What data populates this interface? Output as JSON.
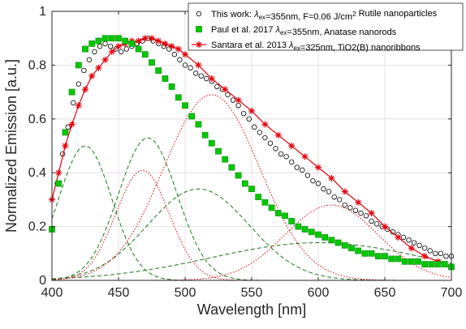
{
  "chart_data": {
    "type": "scatter",
    "xlabel": "Wavelength [nm]",
    "ylabel": "Normalized Emission [a.u.]",
    "xlim": [
      400,
      700
    ],
    "ylim": [
      0,
      1
    ],
    "grid": true,
    "legend_position": "top-right",
    "x_ticks": [
      "400",
      "450",
      "500",
      "550",
      "600",
      "650",
      "700"
    ],
    "y_ticks": [
      "0",
      "0.2",
      "0.4",
      "0.6",
      "0.8",
      "1"
    ],
    "legend": [
      {
        "series": "this_work",
        "parts": [
          {
            "t": "This work: "
          },
          {
            "t": "λ",
            "style": "italic"
          },
          {
            "t": "ex",
            "style": "sub"
          },
          {
            "t": "=355nm, F=0.06 J/cm"
          },
          {
            "t": "2",
            "style": "sup"
          },
          {
            "t": "  Rutile nanoparticles"
          }
        ]
      },
      {
        "series": "paul",
        "parts": [
          {
            "t": "Paul et al. 2017 "
          },
          {
            "t": "λ",
            "style": "italic"
          },
          {
            "t": "ex",
            "style": "sub"
          },
          {
            "t": "=355nm, Anatase nanorods"
          }
        ]
      },
      {
        "series": "santara",
        "parts": [
          {
            "t": "Santara et al. 2013 "
          },
          {
            "t": "λ",
            "style": "italic"
          },
          {
            "t": "ex",
            "style": "sub"
          },
          {
            "t": "=325nm, TiO2(B) nanoribbons"
          }
        ]
      }
    ],
    "series": [
      {
        "id": "this_work",
        "marker": "open-circle",
        "color": "#000000",
        "x": [
          404,
          408,
          412,
          416,
          420,
          424,
          428,
          432,
          436,
          440,
          444,
          448,
          452,
          456,
          460,
          464,
          468,
          472,
          476,
          480,
          484,
          488,
          492,
          496,
          500,
          504,
          508,
          512,
          516,
          520,
          524,
          528,
          532,
          536,
          540,
          544,
          548,
          552,
          556,
          560,
          564,
          568,
          572,
          576,
          580,
          584,
          588,
          592,
          596,
          600,
          604,
          608,
          612,
          616,
          620,
          624,
          628,
          632,
          636,
          640,
          644,
          648,
          652,
          656,
          660,
          664,
          668,
          672,
          676,
          680,
          684,
          688,
          692,
          696,
          700
        ],
        "y": [
          0.36,
          0.47,
          0.57,
          0.66,
          0.73,
          0.78,
          0.82,
          0.85,
          0.87,
          0.88,
          0.87,
          0.86,
          0.85,
          0.86,
          0.87,
          0.88,
          0.89,
          0.9,
          0.89,
          0.88,
          0.87,
          0.86,
          0.84,
          0.82,
          0.8,
          0.79,
          0.77,
          0.76,
          0.75,
          0.74,
          0.72,
          0.71,
          0.69,
          0.67,
          0.65,
          0.62,
          0.6,
          0.57,
          0.55,
          0.53,
          0.51,
          0.49,
          0.47,
          0.46,
          0.44,
          0.42,
          0.41,
          0.39,
          0.37,
          0.36,
          0.34,
          0.33,
          0.31,
          0.3,
          0.28,
          0.27,
          0.26,
          0.25,
          0.24,
          0.22,
          0.21,
          0.2,
          0.19,
          0.18,
          0.17,
          0.16,
          0.15,
          0.14,
          0.13,
          0.12,
          0.11,
          0.1,
          0.1,
          0.09,
          0.09
        ]
      },
      {
        "id": "paul",
        "marker": "filled-square",
        "color": "#00c800",
        "x": [
          400,
          405,
          410,
          415,
          420,
          425,
          430,
          435,
          440,
          445,
          450,
          455,
          460,
          465,
          470,
          475,
          480,
          485,
          490,
          495,
          500,
          505,
          510,
          515,
          520,
          525,
          530,
          535,
          540,
          545,
          550,
          555,
          560,
          565,
          570,
          575,
          580,
          585,
          590,
          595,
          600,
          605,
          610,
          615,
          620,
          625,
          630,
          635,
          640,
          645,
          650,
          655,
          660,
          665,
          670,
          675,
          680,
          685,
          690,
          695,
          700
        ],
        "y": [
          0.19,
          0.36,
          0.55,
          0.7,
          0.8,
          0.86,
          0.88,
          0.89,
          0.9,
          0.9,
          0.9,
          0.89,
          0.88,
          0.86,
          0.84,
          0.81,
          0.78,
          0.75,
          0.72,
          0.68,
          0.65,
          0.61,
          0.58,
          0.54,
          0.51,
          0.48,
          0.45,
          0.42,
          0.39,
          0.36,
          0.34,
          0.31,
          0.29,
          0.27,
          0.25,
          0.24,
          0.22,
          0.2,
          0.19,
          0.18,
          0.17,
          0.16,
          0.15,
          0.14,
          0.13,
          0.12,
          0.11,
          0.1,
          0.1,
          0.09,
          0.09,
          0.08,
          0.08,
          0.07,
          0.07,
          0.07,
          0.06,
          0.06,
          0.06,
          0.06,
          0.05
        ]
      },
      {
        "id": "santara",
        "marker": "asterisk",
        "color": "#e8000b",
        "x": [
          400,
          405,
          410,
          415,
          420,
          425,
          430,
          435,
          440,
          445,
          450,
          455,
          460,
          465,
          470,
          475,
          480,
          485,
          490,
          495,
          500,
          510,
          520,
          530,
          540,
          550,
          560,
          570,
          580,
          590,
          600,
          610,
          620,
          630,
          640,
          650,
          660,
          670,
          680,
          690,
          700
        ],
        "y": [
          0.3,
          0.4,
          0.5,
          0.58,
          0.65,
          0.71,
          0.76,
          0.79,
          0.82,
          0.85,
          0.87,
          0.88,
          0.89,
          0.89,
          0.9,
          0.9,
          0.89,
          0.88,
          0.87,
          0.86,
          0.84,
          0.8,
          0.75,
          0.71,
          0.67,
          0.63,
          0.58,
          0.54,
          0.5,
          0.46,
          0.42,
          0.38,
          0.33,
          0.29,
          0.25,
          0.2,
          0.16,
          0.12,
          0.09,
          0.07,
          0.05
        ]
      }
    ],
    "components": [
      {
        "id": "fit-green-1",
        "color": "#1a7a1a",
        "style": "dashed",
        "center": 425,
        "width": 20,
        "amp": 0.5
      },
      {
        "id": "fit-green-2",
        "color": "#1a7a1a",
        "style": "dashed",
        "center": 472,
        "width": 22,
        "amp": 0.53
      },
      {
        "id": "fit-green-3",
        "color": "#1a7a1a",
        "style": "dashed",
        "center": 510,
        "width": 38,
        "amp": 0.34
      },
      {
        "id": "fit-green-4",
        "color": "#1a7a1a",
        "style": "dashed",
        "center": 600,
        "width": 80,
        "amp": 0.14
      },
      {
        "id": "fit-red-1",
        "color": "#e8000b",
        "style": "dotted",
        "center": 468,
        "width": 20,
        "amp": 0.41
      },
      {
        "id": "fit-red-2",
        "color": "#e8000b",
        "style": "dotted",
        "center": 520,
        "width": 36,
        "amp": 0.69
      },
      {
        "id": "fit-red-3",
        "color": "#e8000b",
        "style": "dotted",
        "center": 610,
        "width": 35,
        "amp": 0.28
      }
    ],
    "fit_sum": {
      "id": "fit-sum-red",
      "color": "#e8000b",
      "style": "solid"
    }
  }
}
